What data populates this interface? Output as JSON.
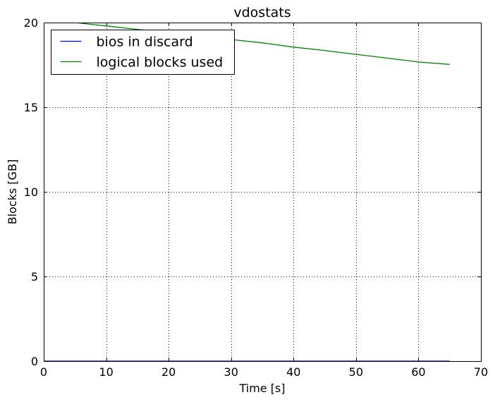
{
  "chart_data": {
    "type": "line",
    "title": "vdostats",
    "xlabel": "Time [s]",
    "ylabel": "Blocks [GB]",
    "xlim": [
      0,
      70
    ],
    "ylim": [
      0,
      20
    ],
    "xticks": [
      0,
      10,
      20,
      30,
      40,
      50,
      60,
      70
    ],
    "yticks": [
      0,
      5,
      10,
      15,
      20
    ],
    "grid": true,
    "legend_position": "top-left",
    "series": [
      {
        "name": "bios in discard",
        "color": "#0000ff",
        "x": [
          0,
          10,
          20,
          30,
          40,
          50,
          60,
          65
        ],
        "y": [
          0,
          0,
          0,
          0,
          0,
          0,
          0,
          0
        ]
      },
      {
        "name": "logical blocks used",
        "color": "#008000",
        "x": [
          0,
          5,
          10,
          15,
          20,
          25,
          30,
          35,
          40,
          45,
          50,
          55,
          60,
          65
        ],
        "y": [
          20.2,
          20.0,
          19.8,
          19.6,
          19.4,
          19.2,
          19.0,
          18.8,
          18.55,
          18.35,
          18.12,
          17.9,
          17.67,
          17.53
        ]
      }
    ]
  }
}
